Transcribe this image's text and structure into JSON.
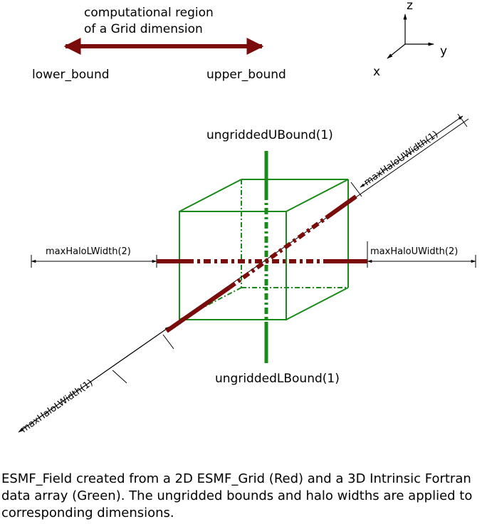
{
  "legend": {
    "title_line1": "computational region",
    "title_line2": "of a Grid dimension",
    "lower": "lower_bound",
    "upper": "upper_bound"
  },
  "axes": {
    "z": "z",
    "y": "y",
    "x": "x"
  },
  "labels": {
    "ungridded_upper": "ungriddedUBound(1)",
    "ungridded_lower": "ungriddedLBound(1)",
    "halo_l_width_2": "maxHaloLWidth(2)",
    "halo_u_width_2": "maxHaloUWidth(2)",
    "halo_u_width_1": "maxHaloUWidth(1)",
    "halo_l_width_1": "maxHaloLWidth(1)"
  },
  "caption": "ESMF_Field created from a 2D ESMF_Grid (Red) and a 3D Intrinsic Fortran data array (Green). The ungridded bounds and halo widths are applied to corresponding dimensions.",
  "colors": {
    "grid_red": "#7a0c0c",
    "array_green": "#1a8a1a",
    "line": "#000000"
  }
}
